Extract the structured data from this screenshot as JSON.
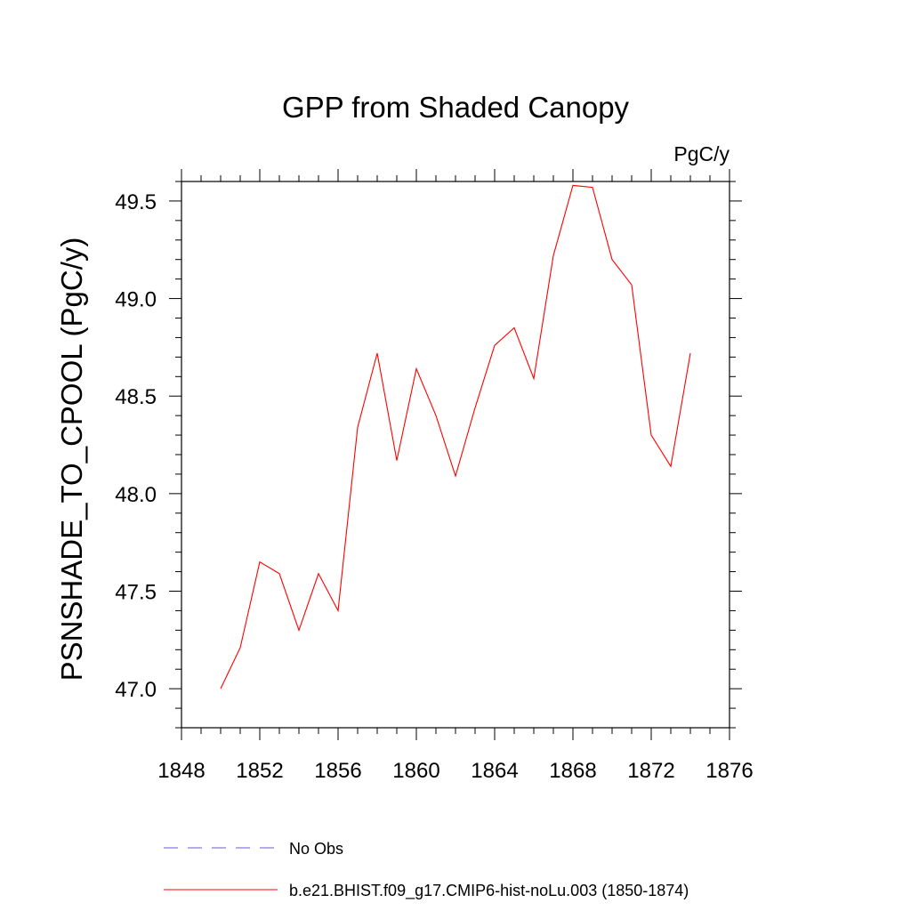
{
  "chart_data": {
    "type": "line",
    "title": "GPP from Shaded Canopy",
    "units": "PgC/y",
    "ylabel": "PSNSHADE_TO_CPOOL  (PgC/y)",
    "xlabel": "",
    "xlim": [
      1848,
      1876
    ],
    "ylim": [
      46.8,
      49.6
    ],
    "x_ticks": [
      "1848",
      "1852",
      "1856",
      "1860",
      "1864",
      "1868",
      "1872",
      "1876"
    ],
    "y_ticks": [
      "47.0",
      "47.5",
      "48.0",
      "48.5",
      "49.0",
      "49.5"
    ],
    "series": [
      {
        "name": "b.e21.BHIST.f09_g17.CMIP6-hist-noLu.003 (1850-1874)",
        "color": "#ff0000",
        "style": "solid",
        "x": [
          1850,
          1851,
          1852,
          1853,
          1854,
          1855,
          1856,
          1857,
          1858,
          1859,
          1860,
          1861,
          1862,
          1863,
          1864,
          1865,
          1866,
          1867,
          1868,
          1869,
          1870,
          1871,
          1872,
          1873,
          1874
        ],
        "y": [
          47.0,
          47.21,
          47.65,
          47.59,
          47.3,
          47.59,
          47.4,
          48.34,
          48.72,
          48.17,
          48.64,
          48.4,
          48.09,
          48.44,
          48.76,
          48.85,
          48.59,
          49.22,
          49.58,
          49.57,
          49.2,
          49.07,
          48.3,
          48.14,
          48.72
        ]
      }
    ],
    "legend": {
      "placement": "bottom",
      "entries": [
        {
          "label": "No Obs",
          "color": "#6a5acd",
          "style": "dashed"
        },
        {
          "label": "b.e21.BHIST.f09_g17.CMIP6-hist-noLu.003 (1850-1874)",
          "color": "#ff0000",
          "style": "solid"
        }
      ]
    },
    "grid": false
  }
}
